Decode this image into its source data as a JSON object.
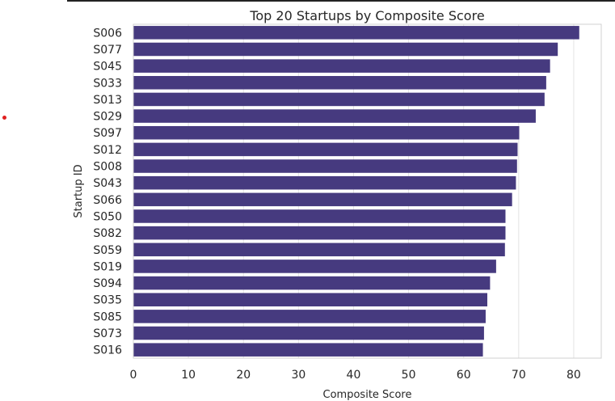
{
  "chart_data": {
    "type": "bar",
    "orientation": "horizontal",
    "title": "Top 20 Startups by Composite Score",
    "xlabel": "Composite Score",
    "ylabel": "Startup ID",
    "categories": [
      "S006",
      "S077",
      "S045",
      "S033",
      "S013",
      "S029",
      "S097",
      "S012",
      "S008",
      "S043",
      "S066",
      "S050",
      "S082",
      "S059",
      "S019",
      "S094",
      "S035",
      "S085",
      "S073",
      "S016"
    ],
    "values": [
      81.0,
      77.1,
      75.7,
      75.0,
      74.7,
      73.1,
      70.1,
      69.8,
      69.7,
      69.5,
      68.8,
      67.6,
      67.6,
      67.5,
      65.9,
      64.8,
      64.3,
      64.0,
      63.7,
      63.5
    ],
    "xlim": [
      0,
      85
    ],
    "xticks": [
      0,
      10,
      20,
      30,
      40,
      50,
      60,
      70,
      80
    ],
    "grid": true,
    "bar_color": "#463a7f"
  }
}
